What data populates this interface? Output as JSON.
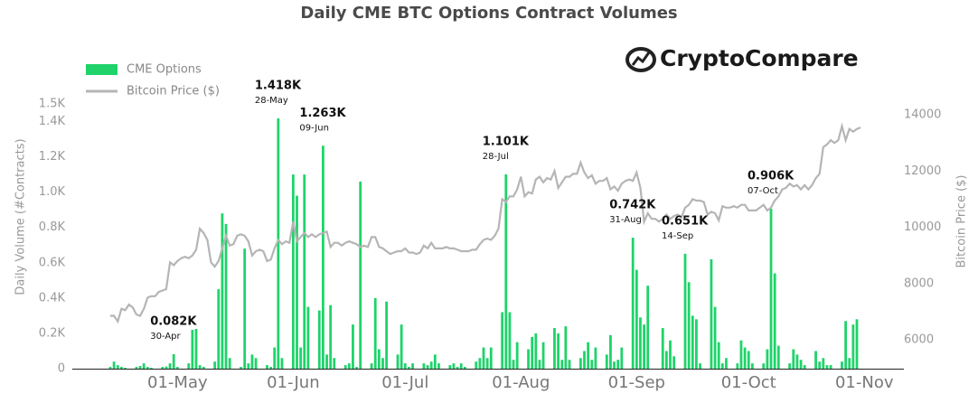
{
  "chart_data": {
    "type": "bar",
    "title": "Daily CME BTC Options Contract Volumes",
    "logo": "CryptoCompare",
    "y_label": "Daily Volume (#Contracts)",
    "y2_label": "Bitcoin Price ($)",
    "categories": [
      "13-Apr",
      "14-Apr",
      "15-Apr",
      "16-Apr",
      "17-Apr",
      "18-Apr",
      "19-Apr",
      "20-Apr",
      "21-Apr",
      "22-Apr",
      "23-Apr",
      "24-Apr",
      "25-Apr",
      "26-Apr",
      "27-Apr",
      "28-Apr",
      "29-Apr",
      "30-Apr",
      "01-May",
      "02-May",
      "03-May",
      "04-May",
      "05-May",
      "06-May",
      "07-May",
      "08-May",
      "09-May",
      "10-May",
      "11-May",
      "12-May",
      "13-May",
      "14-May",
      "15-May",
      "16-May",
      "17-May",
      "18-May",
      "19-May",
      "20-May",
      "21-May",
      "22-May",
      "23-May",
      "24-May",
      "25-May",
      "26-May",
      "27-May",
      "28-May",
      "29-May",
      "30-May",
      "31-May",
      "01-Jun",
      "02-Jun",
      "03-Jun",
      "04-Jun",
      "05-Jun",
      "06-Jun",
      "07-Jun",
      "08-Jun",
      "09-Jun",
      "10-Jun",
      "11-Jun",
      "12-Jun",
      "13-Jun",
      "14-Jun",
      "15-Jun",
      "16-Jun",
      "17-Jun",
      "18-Jun",
      "19-Jun",
      "20-Jun",
      "21-Jun",
      "22-Jun",
      "23-Jun",
      "24-Jun",
      "25-Jun",
      "26-Jun",
      "27-Jun",
      "28-Jun",
      "29-Jun",
      "30-Jun",
      "01-Jul",
      "02-Jul",
      "03-Jul",
      "04-Jul",
      "05-Jul",
      "06-Jul",
      "07-Jul",
      "08-Jul",
      "09-Jul",
      "10-Jul",
      "11-Jul",
      "12-Jul",
      "13-Jul",
      "14-Jul",
      "15-Jul",
      "16-Jul",
      "17-Jul",
      "18-Jul",
      "19-Jul",
      "20-Jul",
      "21-Jul",
      "22-Jul",
      "23-Jul",
      "24-Jul",
      "25-Jul",
      "26-Jul",
      "27-Jul",
      "28-Jul",
      "29-Jul",
      "30-Jul",
      "31-Jul",
      "01-Aug",
      "02-Aug",
      "03-Aug",
      "04-Aug",
      "05-Aug",
      "06-Aug",
      "07-Aug",
      "08-Aug",
      "09-Aug",
      "10-Aug",
      "11-Aug",
      "12-Aug",
      "13-Aug",
      "14-Aug",
      "15-Aug",
      "16-Aug",
      "17-Aug",
      "18-Aug",
      "19-Aug",
      "20-Aug",
      "21-Aug",
      "22-Aug",
      "23-Aug",
      "24-Aug",
      "25-Aug",
      "26-Aug",
      "27-Aug",
      "28-Aug",
      "29-Aug",
      "30-Aug",
      "31-Aug",
      "01-Sep",
      "02-Sep",
      "03-Sep",
      "04-Sep",
      "05-Sep",
      "06-Sep",
      "07-Sep",
      "08-Sep",
      "09-Sep",
      "10-Sep",
      "11-Sep",
      "12-Sep",
      "13-Sep",
      "14-Sep",
      "15-Sep",
      "16-Sep",
      "17-Sep",
      "18-Sep",
      "19-Sep",
      "20-Sep",
      "21-Sep",
      "22-Sep",
      "23-Sep",
      "24-Sep",
      "25-Sep",
      "26-Sep",
      "27-Sep",
      "28-Sep",
      "29-Sep",
      "30-Sep",
      "01-Oct",
      "02-Oct",
      "03-Oct",
      "04-Oct",
      "05-Oct",
      "06-Oct",
      "07-Oct",
      "08-Oct",
      "09-Oct",
      "10-Oct",
      "11-Oct",
      "12-Oct",
      "13-Oct",
      "14-Oct",
      "15-Oct",
      "16-Oct",
      "17-Oct",
      "18-Oct",
      "19-Oct",
      "20-Oct",
      "21-Oct",
      "22-Oct",
      "23-Oct",
      "24-Oct",
      "25-Oct",
      "26-Oct",
      "27-Oct",
      "28-Oct",
      "29-Oct",
      "30-Oct",
      "31-Oct",
      "01-Nov"
    ],
    "series": [
      {
        "name": "CME Options",
        "type": "bar",
        "color": "#1fd36a",
        "values": [
          10,
          40,
          20,
          10,
          5,
          null,
          null,
          10,
          15,
          30,
          10,
          5,
          null,
          null,
          10,
          12,
          30,
          82,
          10,
          null,
          null,
          30,
          220,
          225,
          20,
          10,
          null,
          null,
          40,
          450,
          880,
          820,
          60,
          null,
          null,
          10,
          680,
          30,
          80,
          60,
          null,
          null,
          20,
          10,
          120,
          1418,
          60,
          null,
          null,
          1100,
          980,
          120,
          1100,
          350,
          null,
          null,
          330,
          1263,
          80,
          360,
          60,
          null,
          null,
          20,
          30,
          250,
          10,
          1060,
          null,
          null,
          30,
          400,
          110,
          60,
          380,
          null,
          null,
          80,
          250,
          30,
          10,
          30,
          null,
          null,
          30,
          20,
          40,
          80,
          30,
          null,
          null,
          20,
          30,
          10,
          30,
          10,
          null,
          null,
          40,
          60,
          120,
          60,
          120,
          null,
          null,
          320,
          1101,
          320,
          50,
          150,
          null,
          null,
          110,
          180,
          200,
          50,
          150,
          null,
          null,
          230,
          200,
          50,
          240,
          50,
          null,
          null,
          60,
          100,
          150,
          50,
          120,
          null,
          null,
          80,
          190,
          40,
          50,
          120,
          null,
          null,
          742,
          560,
          290,
          250,
          470,
          null,
          null,
          null,
          230,
          100,
          160,
          70,
          null,
          null,
          651,
          490,
          300,
          280,
          30,
          null,
          null,
          620,
          350,
          150,
          30,
          60,
          null,
          null,
          30,
          160,
          120,
          100,
          30,
          null,
          null,
          30,
          110,
          906,
          540,
          130,
          null,
          null,
          30,
          110,
          80,
          50,
          20,
          null,
          null,
          100,
          40,
          60,
          20,
          20,
          null,
          null,
          40,
          270,
          60,
          250,
          280,
          null,
          null
        ]
      },
      {
        "name": "Bitcoin Price ($)",
        "type": "line",
        "axis": "y2",
        "color": "#b5b5b5",
        "values": [
          6850,
          6850,
          6650,
          7100,
          7050,
          7250,
          7150,
          6900,
          6850,
          7100,
          7500,
          7550,
          7550,
          7700,
          7750,
          7800,
          8750,
          8650,
          8800,
          8900,
          8950,
          8900,
          9000,
          9200,
          9950,
          9800,
          9550,
          8750,
          8600,
          8800,
          9250,
          9700,
          9350,
          9400,
          9700,
          9750,
          9700,
          9500,
          9000,
          9150,
          9200,
          9150,
          8800,
          8850,
          9250,
          9550,
          9400,
          9500,
          9450,
          10200,
          9500,
          9650,
          9800,
          9650,
          9750,
          9650,
          9750,
          9800,
          9850,
          9300,
          9450,
          9450,
          9350,
          9450,
          9500,
          9450,
          9400,
          9300,
          9350,
          9300,
          9650,
          9650,
          9300,
          9250,
          9150,
          9050,
          9100,
          9150,
          9150,
          9250,
          9100,
          9100,
          9050,
          9100,
          9350,
          9250,
          9450,
          9250,
          9250,
          9250,
          9300,
          9250,
          9250,
          9200,
          9150,
          9150,
          9150,
          9200,
          9200,
          9400,
          9550,
          9600,
          9550,
          9700,
          9950,
          11000,
          10900,
          11100,
          11100,
          11350,
          11800,
          11100,
          11250,
          11200,
          11700,
          11800,
          11600,
          11750,
          11700,
          12000,
          11400,
          11600,
          11800,
          11800,
          11900,
          11900,
          12300,
          11950,
          11750,
          11850,
          11550,
          11650,
          11650,
          11750,
          11350,
          11450,
          11300,
          11550,
          11650,
          11700,
          11650,
          11950,
          11400,
          10200,
          10500,
          10300,
          10300,
          10200,
          10300,
          10450,
          10300,
          10400,
          10450,
          10350,
          10700,
          10800,
          11000,
          10950,
          10950,
          10900,
          10450,
          10550,
          10500,
          10250,
          10750,
          10700,
          10700,
          10750,
          10700,
          10800,
          10800,
          10600,
          10600,
          10600,
          10700,
          10800,
          10600,
          10700,
          10950,
          11100,
          11350,
          11400,
          11550,
          11450,
          11500,
          11350,
          11500,
          11350,
          11500,
          11750,
          11900,
          12850,
          12950,
          13100,
          13000,
          13100,
          13600,
          13100,
          13500,
          13400,
          13500,
          13550,
          null
        ]
      }
    ],
    "ylim": [
      0,
      1500
    ],
    "yticks": [
      0,
      {
        "value": 200,
        "label": "0.2K"
      },
      {
        "value": 400,
        "label": "0.4K"
      },
      {
        "value": 600,
        "label": "0.6K"
      },
      {
        "value": 800,
        "label": "0.8K"
      },
      {
        "value": 1000,
        "label": "1.0K"
      },
      {
        "value": 1200,
        "label": "1.2K"
      },
      {
        "value": 1400,
        "label": "1.4K"
      },
      {
        "value": 1500,
        "label": "1.5K"
      }
    ],
    "y2lim": [
      4970,
      14390
    ],
    "y2ticks": [
      6000,
      8000,
      10000,
      12000,
      14000
    ],
    "xticks": [
      "01-May",
      "01-Jun",
      "01-Jul",
      "01-Aug",
      "01-Sep",
      "01-Oct",
      "01-Nov"
    ],
    "annotations": [
      {
        "date": "30-Apr",
        "value": 82,
        "label": "0.082K"
      },
      {
        "date": "28-May",
        "value": 1418,
        "label": "1.418K"
      },
      {
        "date": "09-Jun",
        "value": 1263,
        "label": "1.263K"
      },
      {
        "date": "28-Jul",
        "value": 1101,
        "label": "1.101K"
      },
      {
        "date": "31-Aug",
        "value": 742,
        "label": "0.742K"
      },
      {
        "date": "14-Sep",
        "value": 651,
        "label": "0.651K"
      },
      {
        "date": "07-Oct",
        "value": 906,
        "label": "0.906K"
      }
    ],
    "legend": "top-left"
  }
}
